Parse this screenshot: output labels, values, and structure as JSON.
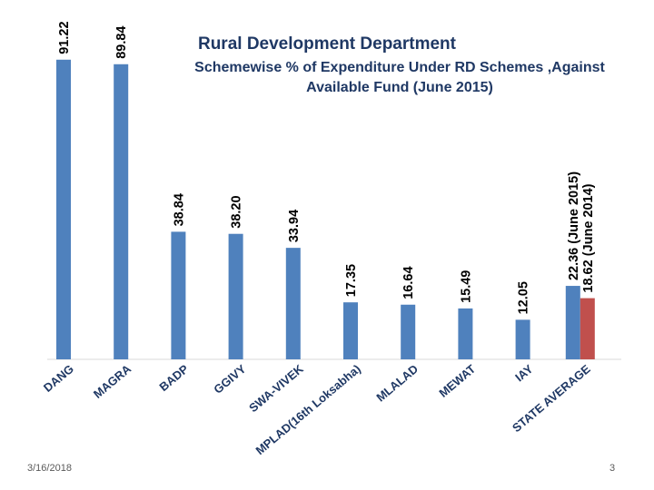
{
  "slide": {
    "date": "3/16/2018",
    "page_number": "3"
  },
  "chart_data": {
    "type": "bar",
    "title": "Rural Development Department",
    "subtitle": "Schemewise % of Expenditure Under RD Schemes ,Against Available Fund (June 2015)",
    "categories": [
      "DANG",
      "MAGRA",
      "BADP",
      "GGIVY",
      "SWA-VIVEK",
      "MPLAD(16th Loksabha)",
      "MLALAD",
      "MEWAT",
      "IAY",
      "STATE AVERAGE"
    ],
    "series": [
      {
        "name": "June 2015",
        "color": "#4f81bd",
        "values": [
          91.22,
          89.84,
          38.84,
          38.2,
          33.94,
          17.35,
          16.64,
          15.49,
          12.05,
          22.36
        ],
        "labels": [
          "91.22",
          "89.84",
          "38.84",
          "38.20",
          "33.94",
          "17.35",
          "16.64",
          "15.49",
          "12.05",
          "22.36  (June 2015)"
        ]
      },
      {
        "name": "June 2014",
        "color": "#c0504d",
        "values": [
          null,
          null,
          null,
          null,
          null,
          null,
          null,
          null,
          null,
          18.62
        ],
        "labels": [
          null,
          null,
          null,
          null,
          null,
          null,
          null,
          null,
          null,
          "18.62  (June 2014)"
        ]
      }
    ],
    "ylim": [
      0,
      100
    ],
    "grid": false,
    "legend": "none"
  }
}
